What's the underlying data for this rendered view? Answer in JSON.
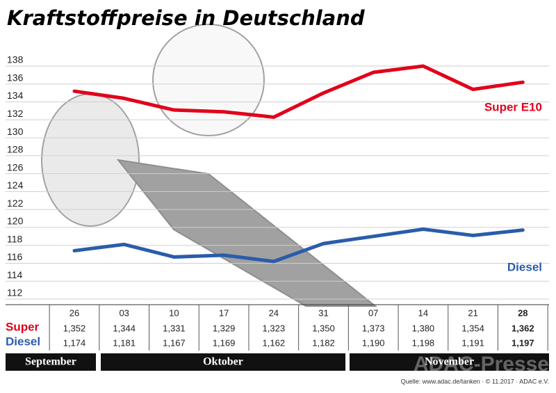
{
  "chart_data": {
    "type": "line",
    "title": "Kraftstoffpreise in Deutschland",
    "categories": [
      "26",
      "03",
      "10",
      "17",
      "24",
      "31",
      "07",
      "14",
      "21",
      "28"
    ],
    "series": [
      {
        "name": "Super E10",
        "color": "#e2001a",
        "values": [
          135.2,
          134.4,
          133.1,
          132.9,
          132.3,
          135.0,
          137.3,
          138.0,
          135.4,
          136.2
        ],
        "value_labels": [
          "1,352",
          "1,344",
          "1,331",
          "1,329",
          "1,323",
          "1,350",
          "1,373",
          "1,380",
          "1,354",
          "1,362"
        ]
      },
      {
        "name": "Diesel",
        "color": "#2a5caa",
        "values": [
          117.4,
          118.1,
          116.7,
          116.9,
          116.2,
          118.2,
          119.0,
          119.8,
          119.1,
          119.7
        ],
        "value_labels": [
          "1,174",
          "1,181",
          "1,167",
          "1,169",
          "1,162",
          "1,182",
          "1,190",
          "1,198",
          "1,191",
          "1,197"
        ]
      }
    ],
    "row_labels": [
      "Super",
      "Diesel"
    ],
    "months": [
      "September",
      "Oktober",
      "November"
    ],
    "ylim": [
      112,
      138
    ],
    "yticks": [
      112,
      114,
      116,
      118,
      120,
      122,
      124,
      126,
      128,
      130,
      132,
      134,
      136,
      138
    ],
    "grid": true,
    "source": "Quelle: www.adac.de/tanken · © 11.2017 · ADAC e.V.",
    "watermark": "ADAC-Presse"
  }
}
